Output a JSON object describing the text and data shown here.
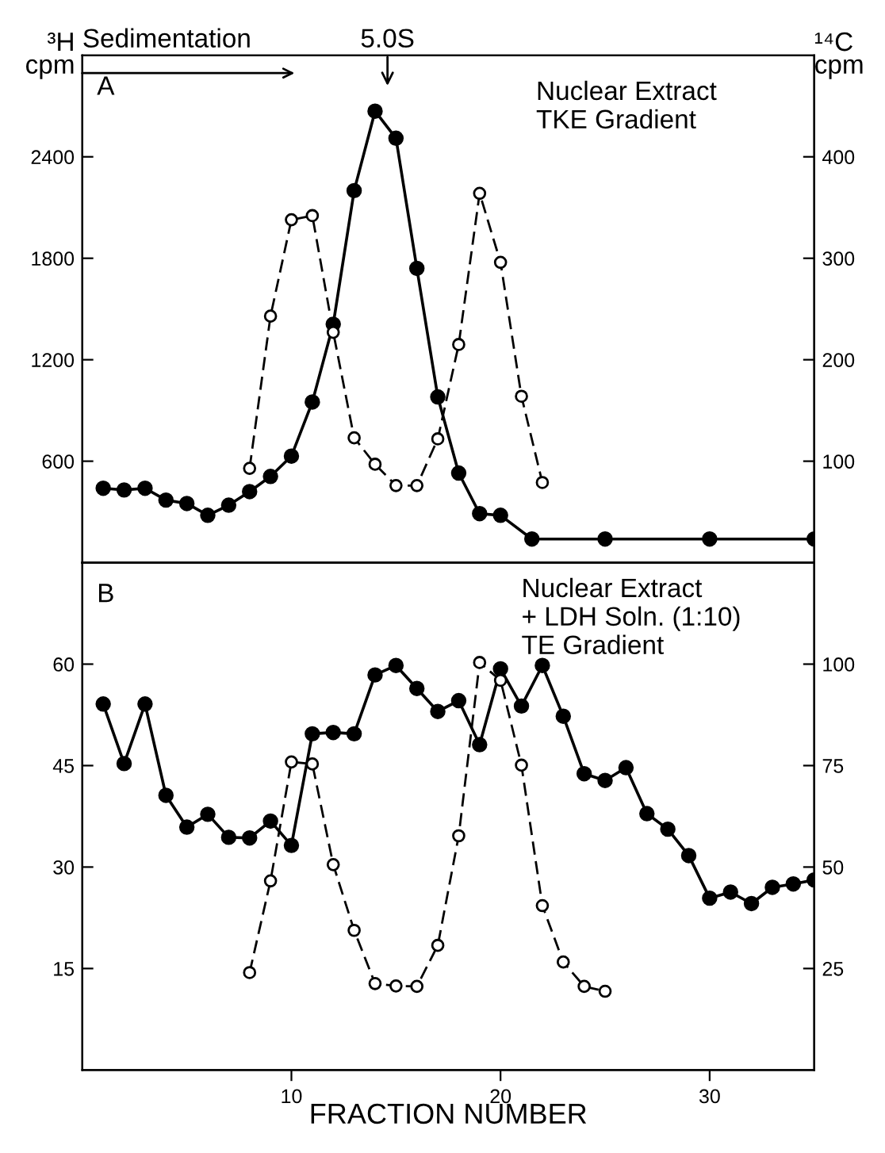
{
  "chart_data": [
    {
      "type": "line",
      "title": "A",
      "ylabel": "³H\ncpm",
      "y2label": "¹⁴C\ncpm",
      "xlim": [
        0,
        35
      ],
      "xticks": [
        10,
        20,
        30
      ],
      "ylim": [
        0,
        3000
      ],
      "yticks": [
        600,
        1200,
        1800,
        2400
      ],
      "y2lim": [
        0,
        500
      ],
      "y2ticks": [
        100,
        200,
        300,
        400
      ],
      "tick_labels": "y",
      "grid": false,
      "legend": false,
      "marker": "circle",
      "annotations": [
        "Sedimentation",
        "5.0S",
        "Nuclear Extract\nTKE Gradient"
      ],
      "series": [
        {
          "color": "#000000",
          "line_style": "solid",
          "x": [
            1,
            2,
            3,
            4,
            5,
            6,
            7,
            8,
            9,
            10,
            11,
            12,
            13,
            14,
            15,
            16,
            17,
            18,
            19,
            20,
            21.5,
            25,
            30,
            35
          ],
          "values": [
            440,
            430,
            440,
            370,
            350,
            280,
            340,
            420,
            510,
            630,
            950,
            1410,
            2200,
            2670,
            2510,
            1740,
            980,
            530,
            290,
            280,
            140,
            140,
            140,
            140
          ]
        },
        {
          "color": "#000000",
          "line_style": "dashed",
          "axis": "y2",
          "x": [
            8,
            9,
            10,
            11,
            12,
            13,
            14,
            15,
            16,
            17,
            18,
            19,
            20,
            21,
            22
          ],
          "values": [
            93,
            243,
            338,
            342,
            227,
            123,
            97,
            76,
            76,
            122,
            215,
            364,
            296,
            164,
            79
          ]
        }
      ]
    },
    {
      "type": "line",
      "title": "B",
      "xlabel": "FRACTION NUMBER",
      "xlim": [
        0,
        35
      ],
      "xticks": [
        10,
        20,
        30
      ],
      "ylim": [
        0,
        75
      ],
      "yticks": [
        15,
        30,
        45,
        60
      ],
      "y2lim": [
        0,
        125
      ],
      "y2ticks": [
        25,
        50,
        75,
        100
      ],
      "grid": false,
      "legend": false,
      "marker": "circle",
      "annotations": [
        "Nuclear Extract\n+ LDH Soln. (1:10)\nTE Gradient"
      ],
      "series": [
        {
          "color": "#000000",
          "line_style": "solid",
          "x": [
            1,
            2,
            3,
            4,
            5,
            6,
            7,
            8,
            9,
            10,
            11,
            12,
            13,
            14,
            15,
            16,
            17,
            18,
            19,
            20,
            21,
            22,
            23,
            24,
            25,
            26,
            27,
            28,
            29,
            30,
            31,
            32,
            33,
            34,
            35
          ],
          "values": [
            54.1,
            45.3,
            54.1,
            40.6,
            35.9,
            37.8,
            34.4,
            34.3,
            36.8,
            33.2,
            49.7,
            49.9,
            49.7,
            58.4,
            59.8,
            56.4,
            53.0,
            54.6,
            48.1,
            59.3,
            53.8,
            59.8,
            52.3,
            43.8,
            42.8,
            44.7,
            37.9,
            35.6,
            31.7,
            25.4,
            26.3,
            24.6,
            27.0,
            27.5,
            28.1
          ]
        },
        {
          "color": "#000000",
          "line_style": "dashed",
          "axis": "y2",
          "x": [
            8,
            9,
            10,
            11,
            12,
            13,
            14,
            15,
            16,
            17,
            18,
            19,
            20,
            21,
            22,
            23,
            24,
            25
          ],
          "values": [
            24.0,
            46.6,
            75.9,
            75.4,
            50.6,
            34.4,
            21.3,
            20.7,
            20.6,
            30.7,
            57.7,
            100.4,
            96.0,
            75.1,
            40.5,
            26.6,
            20.6,
            19.4
          ]
        }
      ]
    }
  ]
}
